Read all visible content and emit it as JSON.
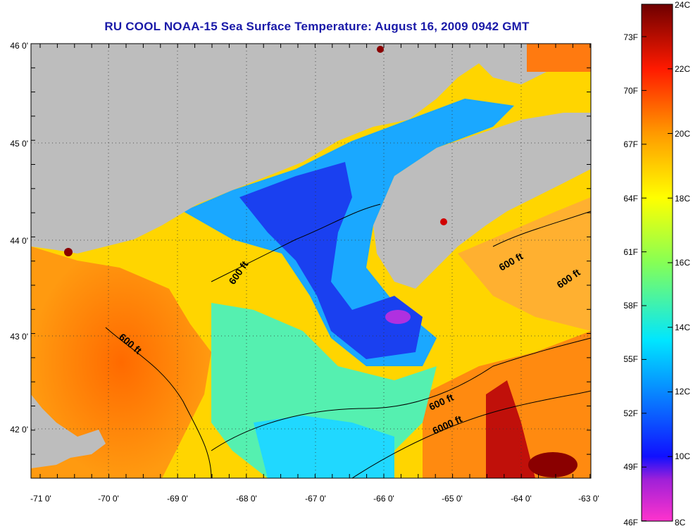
{
  "title": "RU COOL  NOAA-15  Sea Surface Temperature:  August 16, 2009 0942 GMT",
  "map": {
    "lon_ticks": [
      "-71 0'",
      "-70 0'",
      "-69 0'",
      "-68 0'",
      "-67 0'",
      "-66 0'",
      "-65 0'",
      "-64 0'",
      "-63 0'"
    ],
    "lat_ticks": [
      "46 0'",
      "45 0'",
      "44 0'",
      "43 0'",
      "42 0'"
    ],
    "land_color": "#bdbdbd",
    "contours": {
      "shallow": "600 ft",
      "deep": "6000 ft"
    }
  },
  "colorbar": {
    "celsius_labels": [
      "24C",
      "22C",
      "20C",
      "18C",
      "16C",
      "14C",
      "12C",
      "10C",
      "8C"
    ],
    "fahrenheit_labels": [
      "73F",
      "70F",
      "67F",
      "64F",
      "61F",
      "58F",
      "55F",
      "52F",
      "49F",
      "46F"
    ],
    "range_c": [
      8,
      24
    ],
    "gradient": [
      "#ff33cc",
      "#8a1fd0",
      "#0000ff",
      "#0a70ff",
      "#00e0ff",
      "#7dff6a",
      "#ffff00",
      "#ffa000",
      "#ff2a00",
      "#a80000",
      "#700000"
    ]
  }
}
